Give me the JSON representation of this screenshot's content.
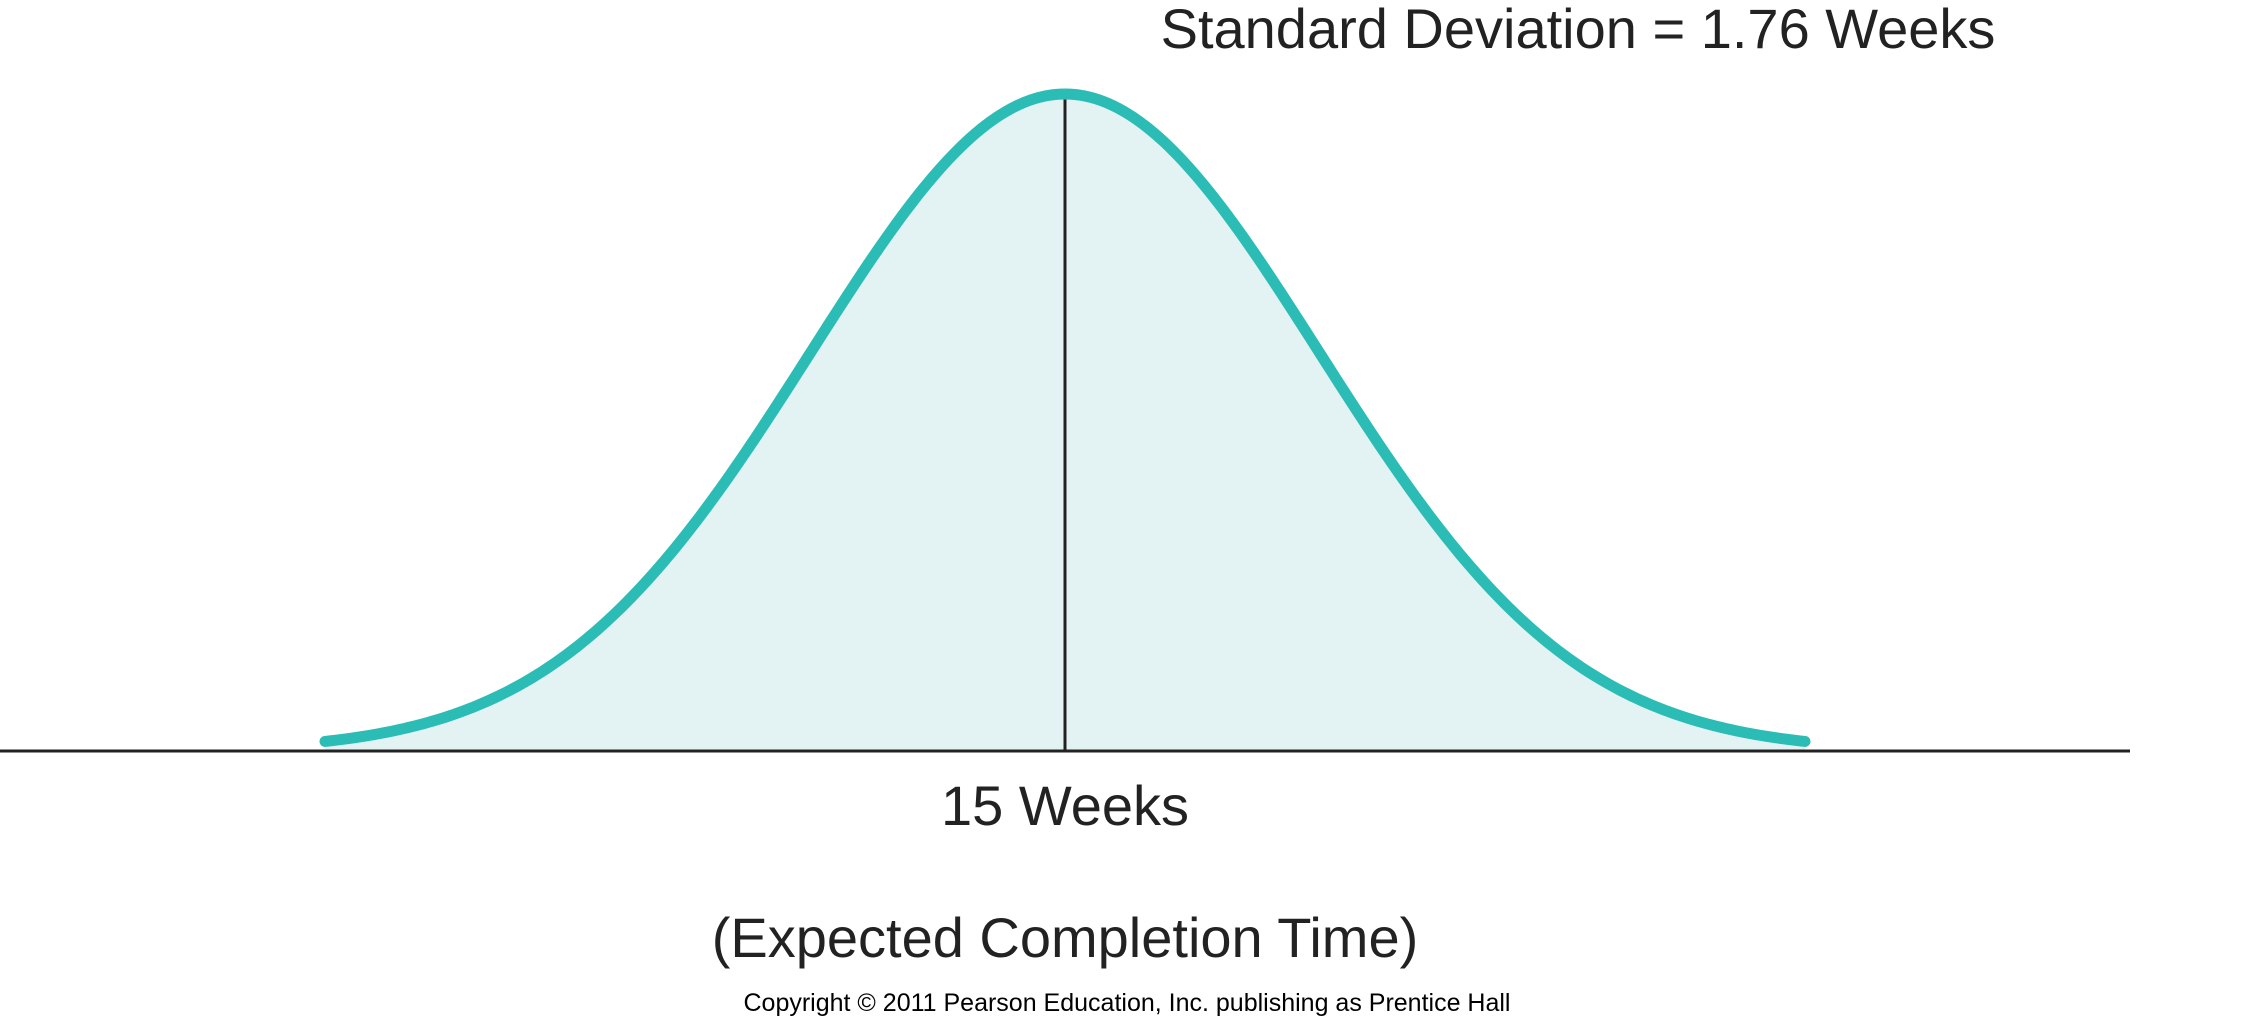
{
  "chart_data": {
    "type": "area",
    "distribution": "normal",
    "mean": 15,
    "std_dev": 1.76,
    "xlim": [
      9.88,
      20.12
    ],
    "std_dev_label": "Standard Deviation = 1.76 Weeks",
    "mean_label": "15 Weeks",
    "mean_caption": "(Expected Completion Time)",
    "grid": false,
    "legend": "none"
  },
  "copyright": "Copyright © 2011 Pearson Education, Inc. publishing as Prentice Hall",
  "colors": {
    "curve": "#2bbcb6",
    "fill": "#e3f3f3",
    "axis": "#222222",
    "text": "#222222",
    "background": "#ffffff"
  }
}
